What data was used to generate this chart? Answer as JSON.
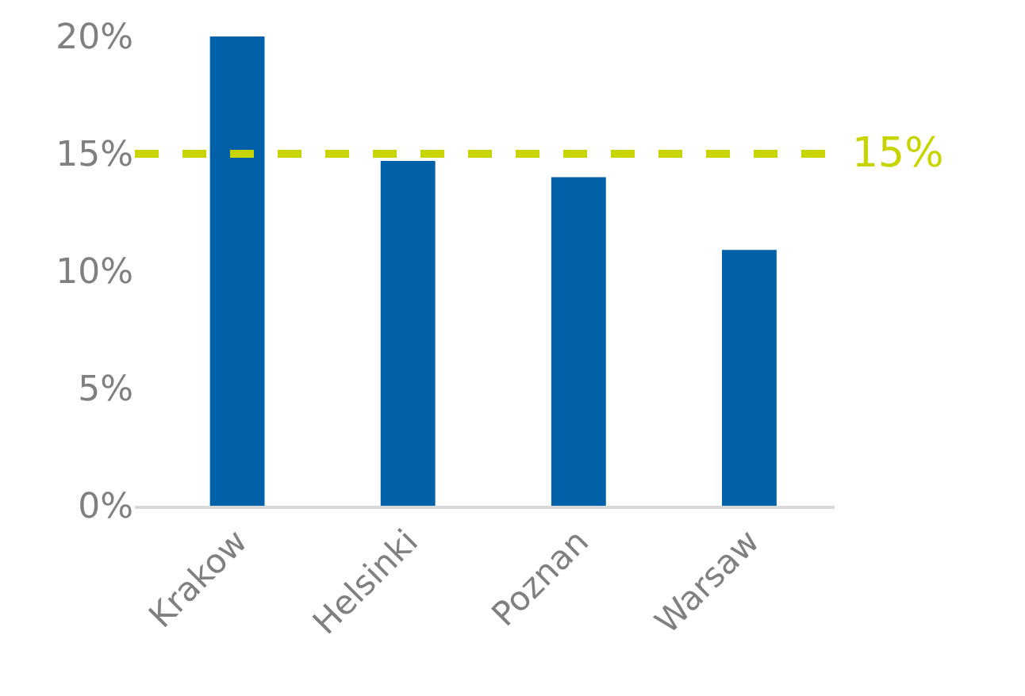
{
  "chart_data": {
    "type": "bar",
    "categories": [
      "Krakow",
      "Helsinki",
      "Poznan",
      "Warsaw"
    ],
    "values": [
      20,
      14.7,
      14.0,
      10.9
    ],
    "color": "#0060a8",
    "ylim": [
      0,
      20
    ],
    "yticks": [
      {
        "value": 0,
        "label": "0%"
      },
      {
        "value": 5,
        "label": "5%"
      },
      {
        "value": 10,
        "label": "10%"
      },
      {
        "value": 15,
        "label": "15%"
      },
      {
        "value": 20,
        "label": "20%"
      }
    ],
    "ref_lines": [
      {
        "axis": "y",
        "value": 15,
        "label": "15%",
        "color": "#c8d400",
        "line_style": "dashed"
      }
    ]
  }
}
